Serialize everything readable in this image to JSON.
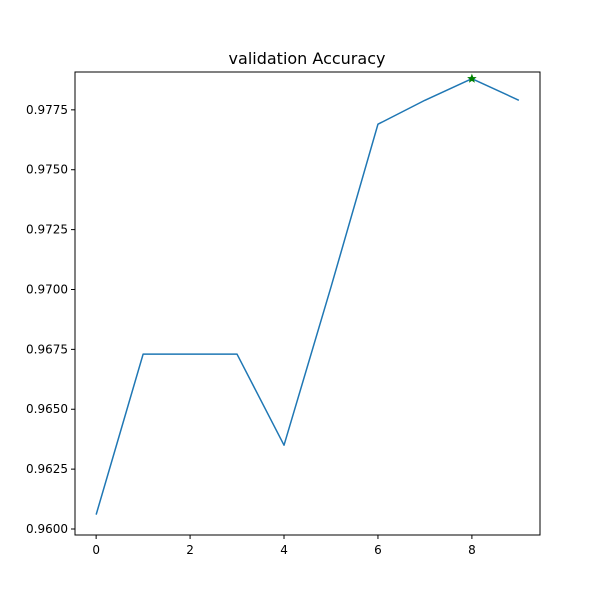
{
  "chart_data": {
    "type": "line",
    "title": "validation Accuracy",
    "xlabel": "",
    "ylabel": "",
    "xlim": [
      -0.45,
      9.45
    ],
    "ylim": [
      0.95975,
      0.97908
    ],
    "x_ticks": [
      0,
      2,
      4,
      6,
      8
    ],
    "y_ticks": [
      0.96,
      0.9625,
      0.965,
      0.9675,
      0.97,
      0.9725,
      0.975,
      0.9775
    ],
    "x_tick_labels": [
      "0",
      "2",
      "4",
      "6",
      "8"
    ],
    "y_tick_labels": [
      "0.9600",
      "0.9625",
      "0.9650",
      "0.9675",
      "0.9700",
      "0.9725",
      "0.9750",
      "0.9775"
    ],
    "grid": false,
    "series": [
      {
        "x": [
          0,
          1,
          2,
          3,
          4,
          5,
          6,
          7,
          8,
          9
        ],
        "values": [
          0.9606,
          0.9673,
          0.9673,
          0.9673,
          0.9635,
          0.9701,
          0.9769,
          0.9779,
          0.9788,
          0.9779
        ],
        "color": "#1f77b4"
      }
    ],
    "marker": {
      "x": 8,
      "y": 0.9788,
      "symbol": "star",
      "color": "#008000"
    }
  }
}
